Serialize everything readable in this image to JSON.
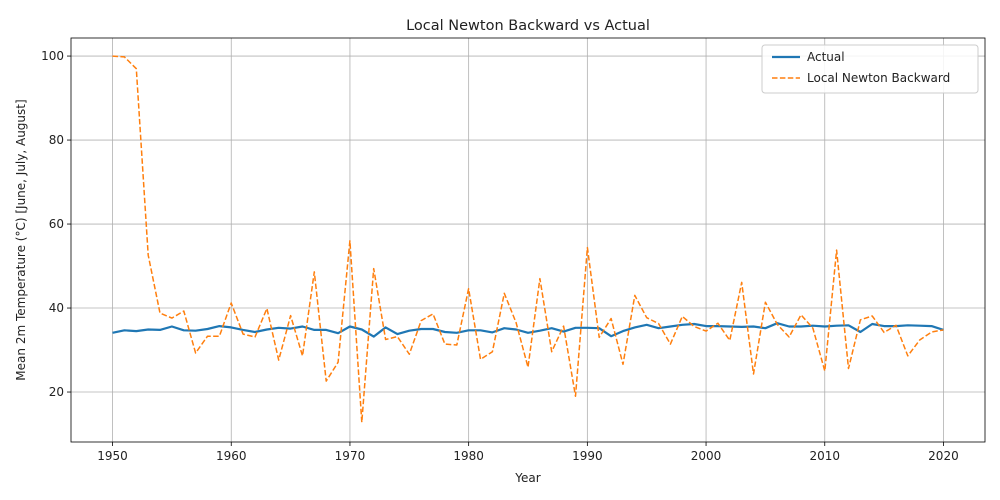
{
  "chart_data": {
    "type": "line",
    "title": "Local Newton Backward vs Actual",
    "xlabel": "Year",
    "ylabel": "Mean 2m Temperature (°C) [June, July, August]",
    "xlim": [
      1946.5,
      2023.5
    ],
    "ylim": [
      8.1,
      104.3
    ],
    "xticks": [
      1950,
      1960,
      1970,
      1980,
      1990,
      2000,
      2010,
      2020
    ],
    "yticks": [
      20,
      40,
      60,
      80,
      100
    ],
    "grid": true,
    "legend": "top-right",
    "series": [
      {
        "name": "Actual",
        "color": "#1f77b4",
        "style": "solid",
        "x": [
          1950,
          1951,
          1952,
          1953,
          1954,
          1955,
          1956,
          1957,
          1958,
          1959,
          1960,
          1961,
          1962,
          1963,
          1964,
          1965,
          1966,
          1967,
          1968,
          1969,
          1970,
          1971,
          1972,
          1973,
          1974,
          1975,
          1976,
          1977,
          1978,
          1979,
          1980,
          1981,
          1982,
          1983,
          1984,
          1985,
          1986,
          1987,
          1988,
          1989,
          1990,
          1991,
          1992,
          1993,
          1994,
          1995,
          1996,
          1997,
          1998,
          1999,
          2000,
          2001,
          2002,
          2003,
          2004,
          2005,
          2006,
          2007,
          2008,
          2009,
          2010,
          2011,
          2012,
          2013,
          2014,
          2015,
          2016,
          2017,
          2018,
          2019,
          2020
        ],
        "y": [
          34.1,
          34.7,
          34.5,
          34.9,
          34.8,
          35.6,
          34.7,
          34.6,
          35.0,
          35.7,
          35.4,
          34.8,
          34.3,
          34.9,
          35.3,
          35.1,
          35.6,
          34.8,
          34.8,
          34.0,
          35.6,
          34.9,
          33.2,
          35.4,
          33.8,
          34.6,
          35.0,
          35.0,
          34.3,
          34.1,
          34.7,
          34.7,
          34.2,
          35.2,
          34.9,
          34.1,
          34.6,
          35.2,
          34.4,
          35.3,
          35.3,
          35.2,
          33.3,
          34.5,
          35.4,
          36.0,
          35.2,
          35.6,
          36.0,
          36.2,
          35.7,
          35.7,
          35.6,
          35.5,
          35.6,
          35.2,
          36.4,
          35.6,
          35.6,
          35.8,
          35.6,
          35.8,
          35.9,
          34.3,
          36.2,
          35.7,
          35.7,
          35.9,
          35.8,
          35.7,
          34.8
        ]
      },
      {
        "name": "Local Newton Backward",
        "color": "#ff7f0e",
        "style": "dashed",
        "x": [
          1950,
          1951,
          1952,
          1953,
          1954,
          1955,
          1956,
          1957,
          1958,
          1959,
          1960,
          1961,
          1962,
          1963,
          1964,
          1965,
          1966,
          1967,
          1968,
          1969,
          1970,
          1971,
          1972,
          1973,
          1974,
          1975,
          1976,
          1977,
          1978,
          1979,
          1980,
          1981,
          1982,
          1983,
          1984,
          1985,
          1986,
          1987,
          1988,
          1989,
          1990,
          1991,
          1992,
          1993,
          1994,
          1995,
          1996,
          1997,
          1998,
          1999,
          2000,
          2001,
          2002,
          2003,
          2004,
          2005,
          2006,
          2007,
          2008,
          2009,
          2010,
          2011,
          2012,
          2013,
          2014,
          2015,
          2016,
          2017,
          2018,
          2019,
          2020
        ],
        "y": [
          100.0,
          99.8,
          97.0,
          52.6,
          38.8,
          37.6,
          39.3,
          29.3,
          33.3,
          33.3,
          41.2,
          33.8,
          33.1,
          39.9,
          27.6,
          38.2,
          28.6,
          48.6,
          22.6,
          27.1,
          56.0,
          12.8,
          49.4,
          32.5,
          33.2,
          29.0,
          37.0,
          38.6,
          31.4,
          31.2,
          44.6,
          27.8,
          29.6,
          43.5,
          36.5,
          25.9,
          47.0,
          29.6,
          35.7,
          19.0,
          54.4,
          33.0,
          37.5,
          26.6,
          43.0,
          37.7,
          36.3,
          31.4,
          38.0,
          35.6,
          34.5,
          36.4,
          32.3,
          46.1,
          24.3,
          41.4,
          36.1,
          33.1,
          38.4,
          35.2,
          25.0,
          53.8,
          25.6,
          37.2,
          38.1,
          34.2,
          35.9,
          28.6,
          32.4,
          34.3,
          34.8
        ]
      }
    ]
  }
}
